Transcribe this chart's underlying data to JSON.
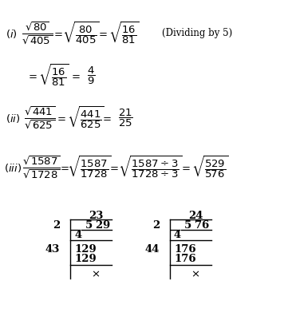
{
  "background_color": "#ffffff",
  "fig_width": 3.56,
  "fig_height": 4.01,
  "dpi": 100
}
